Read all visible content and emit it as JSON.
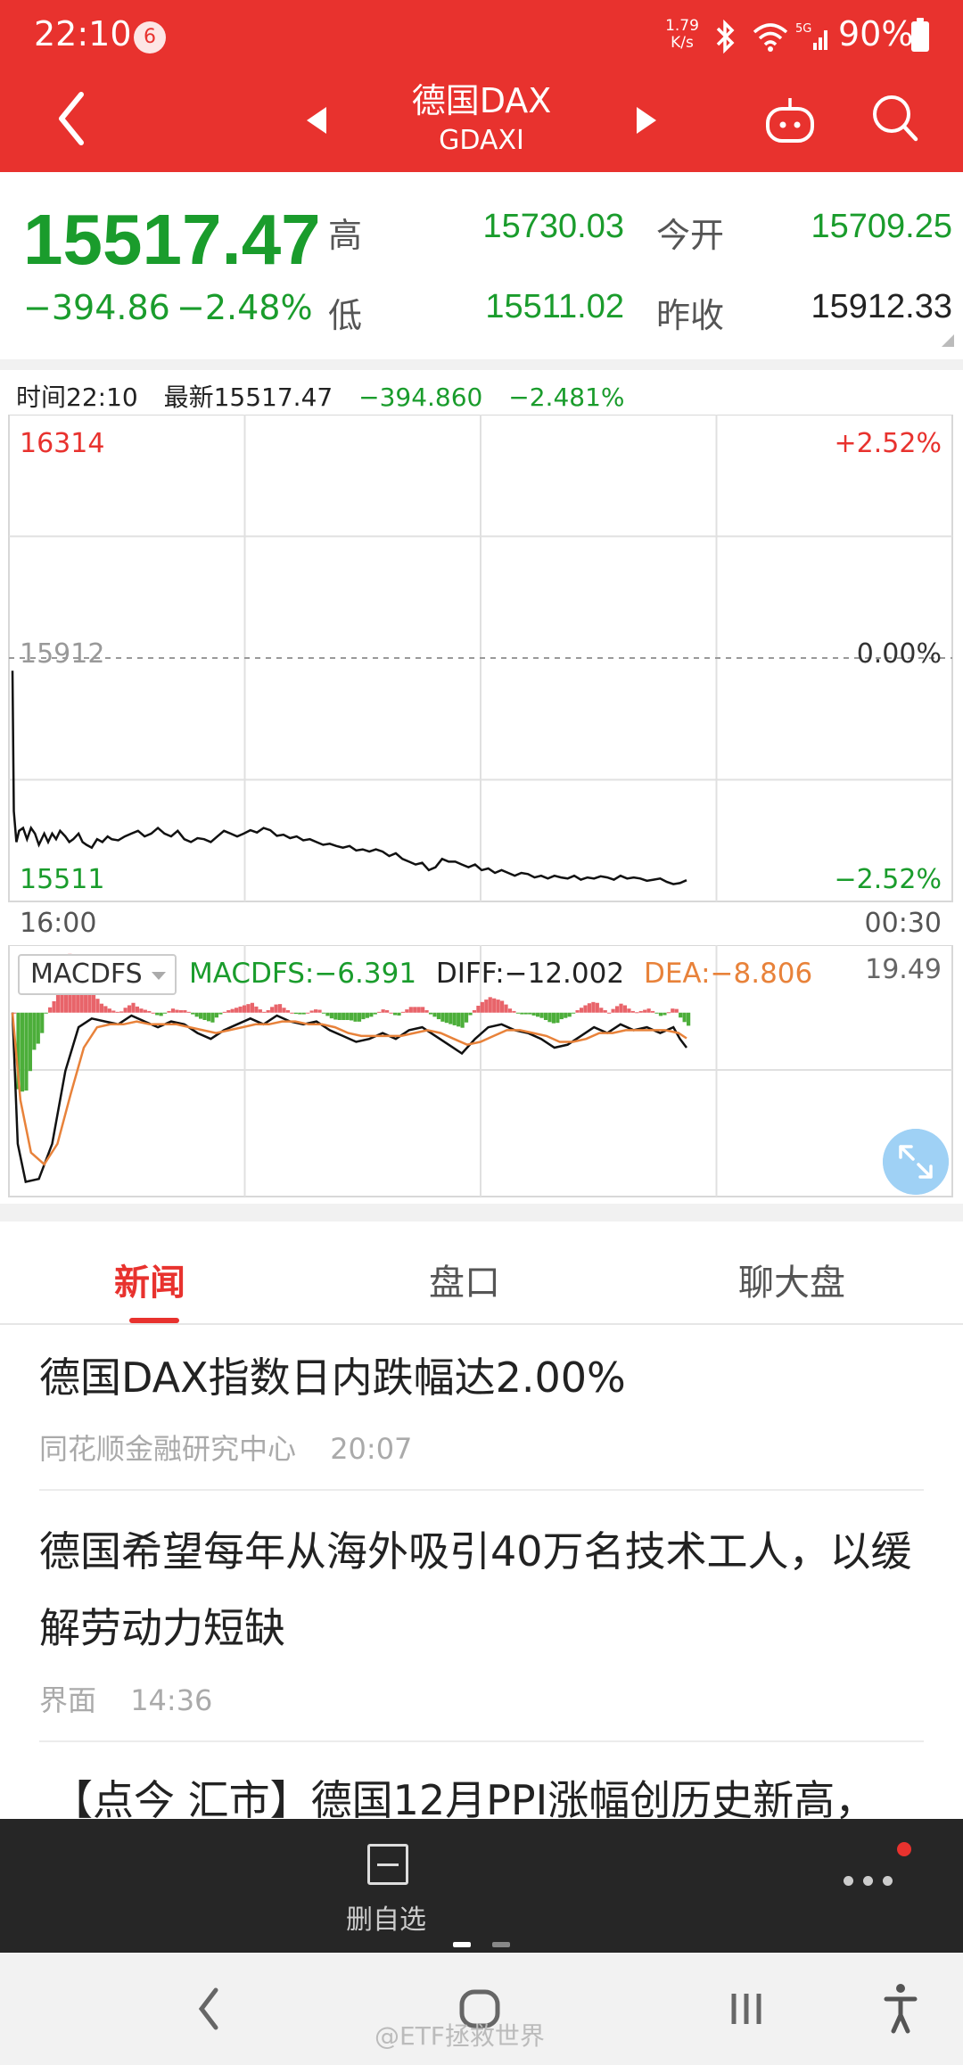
{
  "status_bar": {
    "time": "22:10",
    "notification_count": "6",
    "net_speed_value": "1.79",
    "net_speed_unit": "K/s",
    "battery": "90%"
  },
  "nav": {
    "title": "德国DAX",
    "subtitle": "GDAXI",
    "icons": [
      "back-icon",
      "prev-icon",
      "next-icon",
      "robot-icon",
      "search-icon"
    ]
  },
  "quote": {
    "price": "15517.47",
    "change": "−394.86",
    "change_pct": "−2.48%",
    "high_label": "高",
    "high": "15730.03",
    "low_label": "低",
    "low": "15511.02",
    "open_label": "今开",
    "open": "15709.25",
    "prev_close_label": "昨收",
    "prev_close": "15912.33"
  },
  "chart_info": {
    "time": "时间22:10",
    "latest": "最新15517.47",
    "change": "−394.860",
    "change_pct": "−2.481%"
  },
  "chart_data": [
    {
      "type": "line",
      "title": "",
      "ylim": [
        15511,
        16314
      ],
      "left_labels": {
        "top": "16314",
        "mid": "15912",
        "bottom": "15511"
      },
      "right_labels": {
        "top": "+2.52%",
        "mid": "0.00%",
        "bottom": "−2.52%"
      },
      "x_labels": {
        "start": "16:00",
        "end": "00:30"
      },
      "x_range": [
        0,
        510
      ],
      "series": [
        {
          "values": [
            [
              0,
              15890
            ],
            [
              1,
              15640
            ],
            [
              3,
              15585
            ],
            [
              5,
              15605
            ],
            [
              8,
              15610
            ],
            [
              11,
              15590
            ],
            [
              14,
              15610
            ],
            [
              17,
              15600
            ],
            [
              20,
              15580
            ],
            [
              24,
              15600
            ],
            [
              27,
              15585
            ],
            [
              30,
              15600
            ],
            [
              33,
              15590
            ],
            [
              36,
              15605
            ],
            [
              40,
              15595
            ],
            [
              43,
              15585
            ],
            [
              46,
              15590
            ],
            [
              50,
              15600
            ],
            [
              53,
              15585
            ],
            [
              56,
              15580
            ],
            [
              60,
              15575
            ],
            [
              64,
              15590
            ],
            [
              68,
              15585
            ],
            [
              72,
              15595
            ],
            [
              75,
              15590
            ],
            [
              80,
              15588
            ],
            [
              85,
              15595
            ],
            [
              90,
              15600
            ],
            [
              95,
              15605
            ],
            [
              100,
              15595
            ],
            [
              105,
              15600
            ],
            [
              110,
              15610
            ],
            [
              115,
              15600
            ],
            [
              120,
              15595
            ],
            [
              125,
              15605
            ],
            [
              130,
              15590
            ],
            [
              135,
              15585
            ],
            [
              140,
              15592
            ],
            [
              145,
              15590
            ],
            [
              150,
              15585
            ],
            [
              155,
              15595
            ],
            [
              160,
              15605
            ],
            [
              165,
              15600
            ],
            [
              170,
              15595
            ],
            [
              175,
              15600
            ],
            [
              180,
              15606
            ],
            [
              185,
              15602
            ],
            [
              190,
              15610
            ],
            [
              195,
              15606
            ],
            [
              200,
              15596
            ],
            [
              205,
              15598
            ],
            [
              210,
              15592
            ],
            [
              215,
              15595
            ],
            [
              220,
              15588
            ],
            [
              225,
              15590
            ],
            [
              230,
              15585
            ],
            [
              235,
              15580
            ],
            [
              240,
              15582
            ],
            [
              245,
              15578
            ],
            [
              250,
              15575
            ],
            [
              255,
              15578
            ],
            [
              260,
              15570
            ],
            [
              265,
              15572
            ],
            [
              270,
              15568
            ],
            [
              275,
              15572
            ],
            [
              280,
              15568
            ],
            [
              285,
              15560
            ],
            [
              290,
              15565
            ],
            [
              295,
              15555
            ],
            [
              300,
              15550
            ],
            [
              305,
              15545
            ],
            [
              310,
              15548
            ],
            [
              315,
              15535
            ],
            [
              320,
              15540
            ],
            [
              325,
              15555
            ],
            [
              330,
              15550
            ],
            [
              335,
              15550
            ],
            [
              340,
              15545
            ],
            [
              345,
              15540
            ],
            [
              350,
              15545
            ],
            [
              355,
              15535
            ],
            [
              360,
              15538
            ],
            [
              365,
              15530
            ],
            [
              370,
              15535
            ],
            [
              375,
              15530
            ],
            [
              380,
              15525
            ],
            [
              385,
              15530
            ],
            [
              390,
              15528
            ],
            [
              395,
              15522
            ],
            [
              400,
              15525
            ],
            [
              405,
              15520
            ],
            [
              410,
              15525
            ],
            [
              415,
              15522
            ],
            [
              420,
              15520
            ],
            [
              425,
              15525
            ],
            [
              430,
              15518
            ],
            [
              435,
              15522
            ],
            [
              440,
              15520
            ],
            [
              445,
              15524
            ],
            [
              450,
              15522
            ],
            [
              455,
              15518
            ],
            [
              460,
              15525
            ],
            [
              465,
              15520
            ],
            [
              470,
              15522
            ],
            [
              475,
              15520
            ],
            [
              480,
              15516
            ],
            [
              485,
              15518
            ],
            [
              490,
              15520
            ],
            [
              495,
              15514
            ],
            [
              500,
              15510
            ],
            [
              505,
              15512
            ],
            [
              510,
              15517
            ]
          ]
        }
      ],
      "grid": true
    },
    {
      "type": "line",
      "title": "MACDFS",
      "max_label": "19.49",
      "ylim": [
        -60,
        19.49
      ],
      "x_range": [
        0,
        510
      ],
      "series": [
        {
          "name": "DIFF",
          "color": "#111111",
          "values": [
            [
              0,
              0
            ],
            [
              4,
              -45
            ],
            [
              10,
              -58
            ],
            [
              20,
              -57
            ],
            [
              30,
              -45
            ],
            [
              40,
              -20
            ],
            [
              50,
              -5
            ],
            [
              60,
              -2
            ],
            [
              70,
              -3
            ],
            [
              80,
              -4
            ],
            [
              90,
              -1
            ],
            [
              100,
              -3
            ],
            [
              110,
              -5
            ],
            [
              120,
              -3
            ],
            [
              130,
              -4
            ],
            [
              140,
              -7
            ],
            [
              150,
              -9
            ],
            [
              160,
              -6
            ],
            [
              170,
              -4
            ],
            [
              180,
              -2
            ],
            [
              190,
              -4
            ],
            [
              200,
              -1
            ],
            [
              210,
              -3
            ],
            [
              220,
              -4
            ],
            [
              230,
              -3
            ],
            [
              240,
              -6
            ],
            [
              250,
              -8
            ],
            [
              260,
              -10
            ],
            [
              270,
              -9
            ],
            [
              280,
              -7
            ],
            [
              290,
              -9
            ],
            [
              300,
              -6
            ],
            [
              310,
              -5
            ],
            [
              320,
              -8
            ],
            [
              330,
              -11
            ],
            [
              340,
              -14
            ],
            [
              350,
              -9
            ],
            [
              360,
              -5
            ],
            [
              370,
              -4
            ],
            [
              380,
              -6
            ],
            [
              390,
              -7
            ],
            [
              400,
              -9
            ],
            [
              410,
              -12
            ],
            [
              420,
              -11
            ],
            [
              430,
              -8
            ],
            [
              440,
              -5
            ],
            [
              450,
              -7
            ],
            [
              460,
              -4
            ],
            [
              470,
              -6
            ],
            [
              480,
              -5
            ],
            [
              490,
              -7
            ],
            [
              500,
              -5
            ],
            [
              505,
              -9
            ],
            [
              510,
              -12
            ]
          ]
        },
        {
          "name": "DEA",
          "color": "#e8823a",
          "values": [
            [
              0,
              0
            ],
            [
              6,
              -30
            ],
            [
              14,
              -48
            ],
            [
              24,
              -52
            ],
            [
              34,
              -45
            ],
            [
              44,
              -28
            ],
            [
              54,
              -12
            ],
            [
              64,
              -5
            ],
            [
              74,
              -4
            ],
            [
              84,
              -4
            ],
            [
              94,
              -3
            ],
            [
              104,
              -4
            ],
            [
              114,
              -4
            ],
            [
              124,
              -4
            ],
            [
              134,
              -5
            ],
            [
              144,
              -6
            ],
            [
              154,
              -7
            ],
            [
              164,
              -6
            ],
            [
              174,
              -5
            ],
            [
              184,
              -4
            ],
            [
              194,
              -4
            ],
            [
              204,
              -3
            ],
            [
              214,
              -3
            ],
            [
              224,
              -4
            ],
            [
              234,
              -4
            ],
            [
              244,
              -5
            ],
            [
              254,
              -7
            ],
            [
              264,
              -8
            ],
            [
              274,
              -8
            ],
            [
              284,
              -8
            ],
            [
              294,
              -8
            ],
            [
              304,
              -7
            ],
            [
              314,
              -6
            ],
            [
              324,
              -7
            ],
            [
              334,
              -9
            ],
            [
              344,
              -11
            ],
            [
              354,
              -10
            ],
            [
              364,
              -8
            ],
            [
              374,
              -6
            ],
            [
              384,
              -6
            ],
            [
              394,
              -7
            ],
            [
              404,
              -8
            ],
            [
              414,
              -10
            ],
            [
              424,
              -10
            ],
            [
              434,
              -9
            ],
            [
              444,
              -7
            ],
            [
              454,
              -7
            ],
            [
              464,
              -6
            ],
            [
              474,
              -6
            ],
            [
              484,
              -6
            ],
            [
              494,
              -6
            ],
            [
              504,
              -7
            ],
            [
              510,
              -8.8
            ]
          ]
        }
      ],
      "macd_values": {
        "macdfs": "MACDFS:−6.391",
        "diff": "DIFF:−12.002",
        "dea": "DEA:−8.806"
      },
      "selector_label": "MACDFS"
    }
  ],
  "tabs": [
    {
      "label": "新闻",
      "active": true
    },
    {
      "label": "盘口",
      "active": false
    },
    {
      "label": "聊大盘",
      "active": false
    }
  ],
  "news": [
    {
      "title": "德国DAX指数日内跌幅达2.00%",
      "source": "同花顺金融研究中心",
      "time": "20:07"
    },
    {
      "title": "德国希望每年从海外吸引40万名技术工人，以缓解劳动力短缺",
      "source": "界面",
      "time": "14:36"
    },
    {
      "title": "【点今 汇市】德国12月PPI涨幅创历史新高，"
    }
  ],
  "toolbar": {
    "delete_label": "删自选",
    "icons": [
      "delete-watchlist-icon",
      "more-icon"
    ]
  },
  "watermark": "@ETF拯救世界",
  "colors": {
    "brand_red": "#e8322e",
    "down_green": "#1a9c2c",
    "up_red": "#e8322e",
    "macd_pos": "#e8646a",
    "macd_neg": "#4cae3a"
  }
}
